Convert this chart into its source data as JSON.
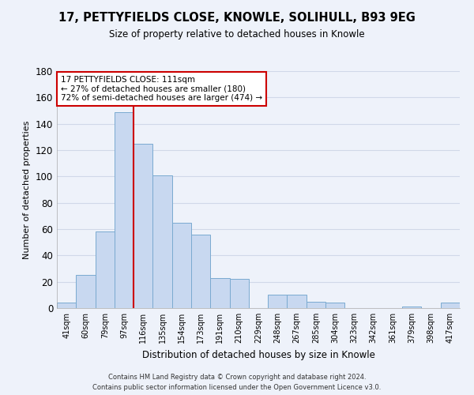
{
  "title": "17, PETTYFIELDS CLOSE, KNOWLE, SOLIHULL, B93 9EG",
  "subtitle": "Size of property relative to detached houses in Knowle",
  "xlabel": "Distribution of detached houses by size in Knowle",
  "ylabel": "Number of detached properties",
  "bar_labels": [
    "41sqm",
    "60sqm",
    "79sqm",
    "97sqm",
    "116sqm",
    "135sqm",
    "154sqm",
    "173sqm",
    "191sqm",
    "210sqm",
    "229sqm",
    "248sqm",
    "267sqm",
    "285sqm",
    "304sqm",
    "323sqm",
    "342sqm",
    "361sqm",
    "379sqm",
    "398sqm",
    "417sqm"
  ],
  "bar_values": [
    4,
    25,
    58,
    149,
    125,
    101,
    65,
    56,
    23,
    22,
    0,
    10,
    10,
    5,
    4,
    0,
    0,
    0,
    1,
    0,
    4
  ],
  "bar_color": "#c8d8f0",
  "bar_edge_color": "#7aaad0",
  "vline_x": 3.5,
  "vline_color": "#cc0000",
  "ylim": [
    0,
    180
  ],
  "yticks": [
    0,
    20,
    40,
    60,
    80,
    100,
    120,
    140,
    160,
    180
  ],
  "annotation_title": "17 PETTYFIELDS CLOSE: 111sqm",
  "annotation_line1": "← 27% of detached houses are smaller (180)",
  "annotation_line2": "72% of semi-detached houses are larger (474) →",
  "annotation_box_color": "#ffffff",
  "annotation_box_edge": "#cc0000",
  "footer_line1": "Contains HM Land Registry data © Crown copyright and database right 2024.",
  "footer_line2": "Contains public sector information licensed under the Open Government Licence v3.0.",
  "background_color": "#eef2fa",
  "grid_color": "#d0d8e8"
}
